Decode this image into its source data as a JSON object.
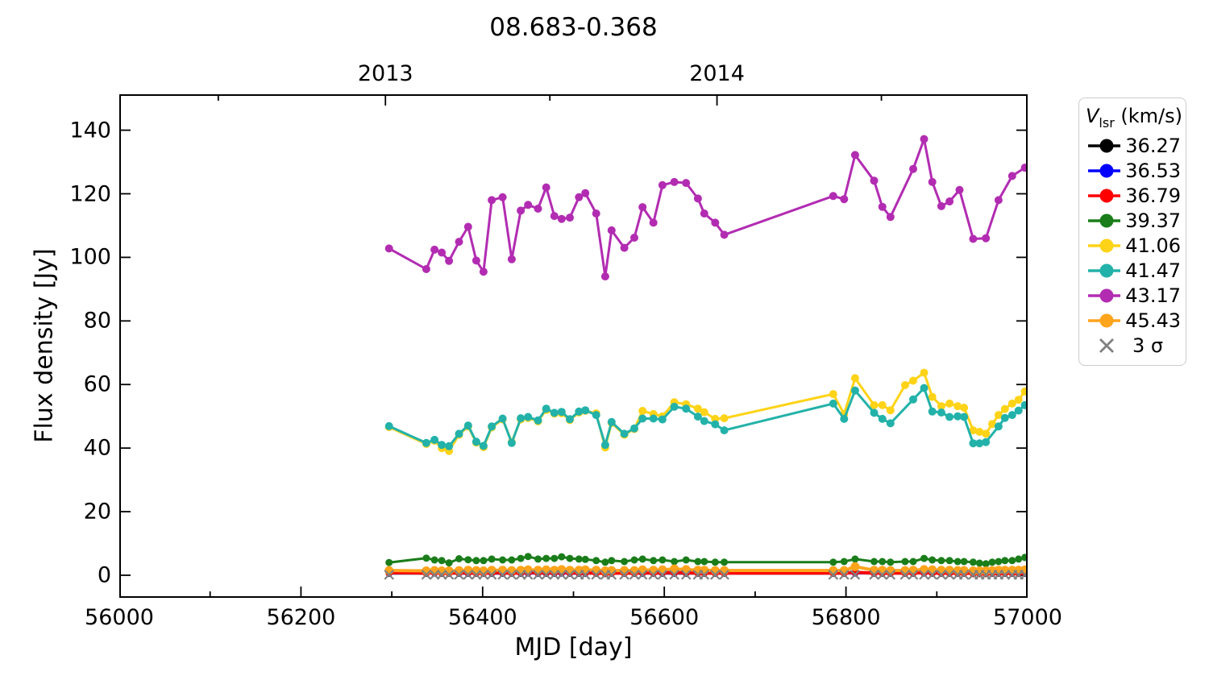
{
  "title": "08.683-0.368",
  "axis": {
    "xlabel": "MJD [day]",
    "ylabel": "Flux density [Jy]"
  },
  "legend": {
    "title_v": "V",
    "title_sub": "lsr",
    "title_rest": " (km/s)"
  },
  "chart_data": {
    "type": "line",
    "title": "08.683-0.368",
    "xlabel": "MJD [day]",
    "ylabel": "Flux density [Jy]",
    "xlim": [
      56000,
      57000
    ],
    "ylim": [
      -7.1,
      151.3
    ],
    "grid": false,
    "legend_position": "outside-right",
    "x_ticks": [
      56000,
      56200,
      56400,
      56600,
      56800,
      57000
    ],
    "x_minor_ticks": [
      56100,
      56300,
      56500,
      56700,
      56900
    ],
    "y_ticks": [
      0,
      20,
      40,
      60,
      80,
      100,
      120,
      140
    ],
    "top_axis_year_ticks": [
      {
        "label": "2013",
        "mjd": 56293
      },
      {
        "label": "2014",
        "mjd": 56658
      }
    ],
    "top_axis_minor_ticks": [
      56109,
      56474,
      56839
    ],
    "epochs": [
      56297,
      56338,
      56347,
      56355,
      56363,
      56374,
      56384,
      56393,
      56401,
      56410,
      56422,
      56432,
      56442,
      56450,
      56461,
      56470,
      56479,
      56487,
      56496,
      56506,
      56513,
      56525,
      56535,
      56542,
      56556,
      56567,
      56576,
      56588,
      56598,
      56611,
      56624,
      56637,
      56644,
      56656,
      56666,
      56786,
      56798,
      56810,
      56831,
      56840,
      56849,
      56865,
      56874,
      56886,
      56895,
      56905,
      56914,
      56923,
      56930,
      56940,
      56947,
      56954,
      56961,
      56968,
      56975,
      56983,
      56990,
      56997
    ],
    "series": [
      {
        "label": "36.27",
        "color": "#000000",
        "line_width": 2.5,
        "marker_r": 4,
        "flux": [
          0.5,
          0.5,
          0.9,
          0.5,
          0.5,
          0.5,
          0.5,
          0.5,
          0.5,
          0.5,
          0.5,
          0.5,
          0.5,
          0.6,
          0.5,
          0.5,
          0.5,
          0.6,
          0.5,
          0.5,
          0.5,
          0.5,
          0.4,
          0.5,
          0.5,
          0.5,
          0.5,
          0.5,
          0.5,
          0.5,
          0.5,
          0.5,
          0.5,
          0.5,
          0.5,
          0.5,
          0.5,
          0.6,
          0.5,
          0.5,
          0.5,
          0.5,
          0.5,
          0.6,
          0.5,
          0.5,
          0.5,
          0.5,
          0.5,
          0.4,
          0.4,
          0.4,
          0.5,
          0.5,
          0.5,
          0.5,
          0.5,
          0.5
        ]
      },
      {
        "label": "36.53",
        "color": "#0000ff",
        "line_width": 2.5,
        "marker_r": 4,
        "flux": [
          0.55,
          0.55,
          0.55,
          0.55,
          0.55,
          0.55,
          0.55,
          0.55,
          0.55,
          0.55,
          0.55,
          0.55,
          0.55,
          0.55,
          0.55,
          0.55,
          0.55,
          0.55,
          0.55,
          0.55,
          0.55,
          0.55,
          0.55,
          0.55,
          0.55,
          0.55,
          0.55,
          0.55,
          0.55,
          0.55,
          0.55,
          0.55,
          0.55,
          0.55,
          0.55,
          0.55,
          0.55,
          0.55,
          0.55,
          0.55,
          0.55,
          0.55,
          0.55,
          0.55,
          0.55,
          0.55,
          0.55,
          0.55,
          0.55,
          0.55,
          0.55,
          0.55,
          0.55,
          0.55,
          0.55,
          0.55,
          0.55,
          0.55
        ]
      },
      {
        "label": "36.79",
        "color": "#ff0000",
        "line_width": 4,
        "marker_r": 4.5,
        "flux": [
          0.8,
          0.7,
          0.8,
          0.7,
          0.7,
          0.8,
          0.8,
          0.7,
          0.7,
          0.8,
          0.8,
          0.7,
          0.8,
          0.9,
          0.8,
          0.8,
          0.8,
          0.9,
          0.8,
          0.8,
          0.8,
          0.7,
          0.6,
          0.7,
          0.7,
          0.7,
          0.8,
          0.7,
          0.8,
          0.8,
          0.8,
          0.7,
          0.7,
          0.7,
          0.7,
          0.7,
          0.7,
          0.9,
          0.7,
          0.7,
          0.7,
          0.7,
          0.7,
          0.8,
          0.7,
          0.7,
          0.7,
          0.7,
          0.7,
          0.6,
          0.6,
          0.6,
          0.7,
          0.7,
          0.7,
          0.7,
          0.7,
          0.8
        ]
      },
      {
        "label": "39.37",
        "color": "#1a7d1a",
        "line_width": 3,
        "marker_r": 4.5,
        "flux": [
          4.0,
          5.4,
          4.8,
          4.6,
          3.9,
          5.2,
          4.9,
          4.6,
          4.6,
          5.1,
          4.8,
          4.8,
          5.3,
          5.9,
          5.1,
          5.3,
          5.3,
          5.8,
          5.3,
          5.1,
          5.0,
          4.6,
          4.1,
          4.6,
          4.3,
          4.8,
          5.1,
          4.6,
          4.8,
          4.3,
          4.8,
          4.3,
          4.3,
          4.1,
          4.1,
          4.1,
          4.3,
          5.1,
          4.3,
          4.3,
          4.1,
          4.3,
          4.3,
          5.3,
          4.8,
          4.6,
          4.6,
          4.3,
          4.3,
          4.1,
          3.8,
          3.6,
          4.1,
          4.3,
          4.6,
          4.6,
          5.1,
          5.6
        ]
      },
      {
        "label": "41.06",
        "color": "#ffd317",
        "line_width": 3,
        "marker_r": 5,
        "flux": [
          46.6,
          41.3,
          42.3,
          40.0,
          39.1,
          44.2,
          46.8,
          41.7,
          40.3,
          46.5,
          49.0,
          41.9,
          49.0,
          49.5,
          48.4,
          52.0,
          50.8,
          51.0,
          48.8,
          51.2,
          51.7,
          50.9,
          40.2,
          47.9,
          44.2,
          46.0,
          51.7,
          50.7,
          50.0,
          54.4,
          53.8,
          52.4,
          51.3,
          49.2,
          49.4,
          57.0,
          50.7,
          62.0,
          53.5,
          53.5,
          51.9,
          59.8,
          61.2,
          63.7,
          56.1,
          53.2,
          54.0,
          53.2,
          52.7,
          45.6,
          45.1,
          44.5,
          47.6,
          50.4,
          52.3,
          54.0,
          55.2,
          57.8
        ]
      },
      {
        "label": "41.47",
        "color": "#23b2a9",
        "line_width": 3,
        "marker_r": 5,
        "mjd": [
          56297,
          56338,
          56347,
          56355,
          56363,
          56374,
          56384,
          56393,
          56401,
          56410,
          56422,
          56432,
          56442,
          56450,
          56461,
          56470,
          56479,
          56487,
          56496,
          56506,
          56513,
          56525,
          56535,
          56542,
          56556,
          56567,
          56576,
          56588,
          56598,
          56611,
          56624,
          56637,
          56644,
          56656,
          56666,
          56786,
          56798,
          56810,
          56831,
          56840,
          56849,
          56874,
          56886,
          56895,
          56905,
          56914,
          56923,
          56930,
          56940,
          56947,
          56954,
          56968,
          56975,
          56983,
          56990,
          56997
        ],
        "flux": [
          46.9,
          41.6,
          42.6,
          41.0,
          40.6,
          44.5,
          47.1,
          42.0,
          40.7,
          46.8,
          49.3,
          41.6,
          49.4,
          49.8,
          48.7,
          52.4,
          51.1,
          51.4,
          49.1,
          51.5,
          51.9,
          50.4,
          41.0,
          48.2,
          44.5,
          46.2,
          49.3,
          49.3,
          49.0,
          53.0,
          52.4,
          49.9,
          48.5,
          47.5,
          45.6,
          54.0,
          49.2,
          58.1,
          51.1,
          49.2,
          47.8,
          55.3,
          58.9,
          51.5,
          51.2,
          49.8,
          50.0,
          49.8,
          41.5,
          41.5,
          41.9,
          46.8,
          49.5,
          50.4,
          51.8,
          53.5
        ]
      },
      {
        "label": "43.17",
        "color": "#b22cb2",
        "line_width": 3,
        "marker_r": 5,
        "mjd": [
          56297,
          56338,
          56347,
          56355,
          56363,
          56374,
          56384,
          56393,
          56401,
          56410,
          56422,
          56432,
          56442,
          56450,
          56461,
          56470,
          56479,
          56487,
          56496,
          56506,
          56513,
          56525,
          56535,
          56542,
          56556,
          56567,
          56576,
          56588,
          56598,
          56611,
          56624,
          56637,
          56644,
          56656,
          56666,
          56786,
          56798,
          56810,
          56831,
          56840,
          56849,
          56874,
          56886,
          56895,
          56905,
          56914,
          56925,
          56940,
          56954,
          56968,
          56983,
          56997
        ],
        "flux": [
          102.8,
          96.3,
          102.4,
          101.5,
          98.9,
          104.9,
          109.6,
          99.0,
          95.5,
          118.0,
          118.9,
          99.4,
          114.7,
          116.5,
          115.3,
          122.0,
          113.0,
          112.1,
          112.5,
          118.9,
          120.2,
          113.8,
          94.0,
          108.5,
          103.0,
          106.2,
          115.8,
          110.9,
          122.7,
          123.7,
          123.4,
          118.5,
          113.8,
          110.9,
          107.1,
          119.3,
          118.3,
          132.2,
          124.1,
          115.9,
          112.7,
          127.8,
          137.2,
          123.7,
          116.1,
          117.6,
          121.2,
          105.8,
          106.0,
          118.0,
          125.6,
          128.2
        ]
      },
      {
        "label": "45.43",
        "color": "#ffa41b",
        "line_width": 4,
        "marker_r": 5.5,
        "flux": [
          1.5,
          1.4,
          1.5,
          1.4,
          1.4,
          1.5,
          1.6,
          1.5,
          1.4,
          1.6,
          1.6,
          1.5,
          1.6,
          1.7,
          1.6,
          1.7,
          1.6,
          1.8,
          1.6,
          1.6,
          1.7,
          1.6,
          1.4,
          1.5,
          1.5,
          1.5,
          1.7,
          1.6,
          1.7,
          2.0,
          1.8,
          1.6,
          1.6,
          1.5,
          1.5,
          1.5,
          1.5,
          2.7,
          1.6,
          1.6,
          1.5,
          1.5,
          1.6,
          1.8,
          1.7,
          1.6,
          1.6,
          1.5,
          1.5,
          1.4,
          1.4,
          1.4,
          1.5,
          1.6,
          1.6,
          1.6,
          1.6,
          1.7
        ]
      }
    ],
    "sigma3": {
      "label": "3 σ",
      "color": "#808080",
      "flux_level": 0.15
    }
  }
}
